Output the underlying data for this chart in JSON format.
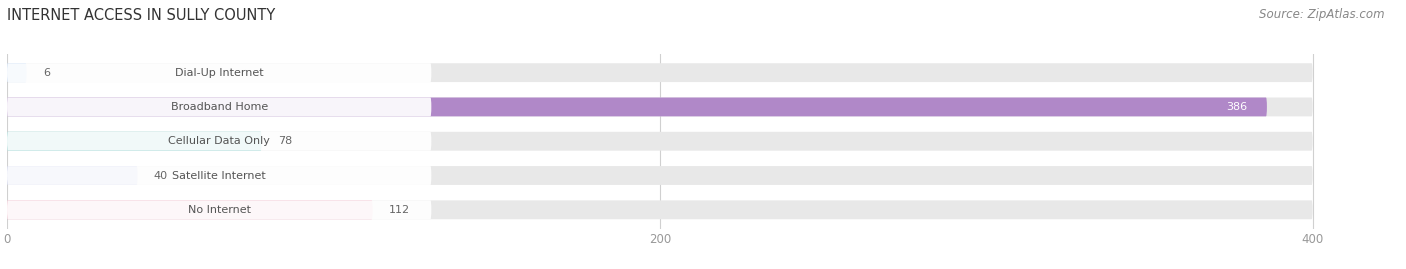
{
  "title": "INTERNET ACCESS IN SULLY COUNTY",
  "source": "Source: ZipAtlas.com",
  "categories": [
    "Dial-Up Internet",
    "Broadband Home",
    "Cellular Data Only",
    "Satellite Internet",
    "No Internet"
  ],
  "values": [
    6,
    386,
    78,
    40,
    112
  ],
  "colors": [
    "#a8c8f0",
    "#b088c8",
    "#5abcb8",
    "#a8b0e0",
    "#f0a0b8"
  ],
  "bar_bg_color": "#e8e8e8",
  "xlim_max": 420,
  "data_max": 400,
  "xticks": [
    0,
    200,
    400
  ],
  "bar_height": 0.55,
  "bg_color": "#ffffff",
  "title_fontsize": 10.5,
  "source_fontsize": 8.5,
  "cat_fontsize": 8.0,
  "val_fontsize": 8.0,
  "tick_fontsize": 8.5,
  "value_label_color_inside": "#ffffff",
  "value_label_color_outside": "#666666",
  "label_bg_color": "#ffffff",
  "grid_color": "#d0d0d0",
  "cat_text_color": "#555555",
  "title_color": "#333333",
  "source_color": "#888888",
  "tick_color": "#999999"
}
